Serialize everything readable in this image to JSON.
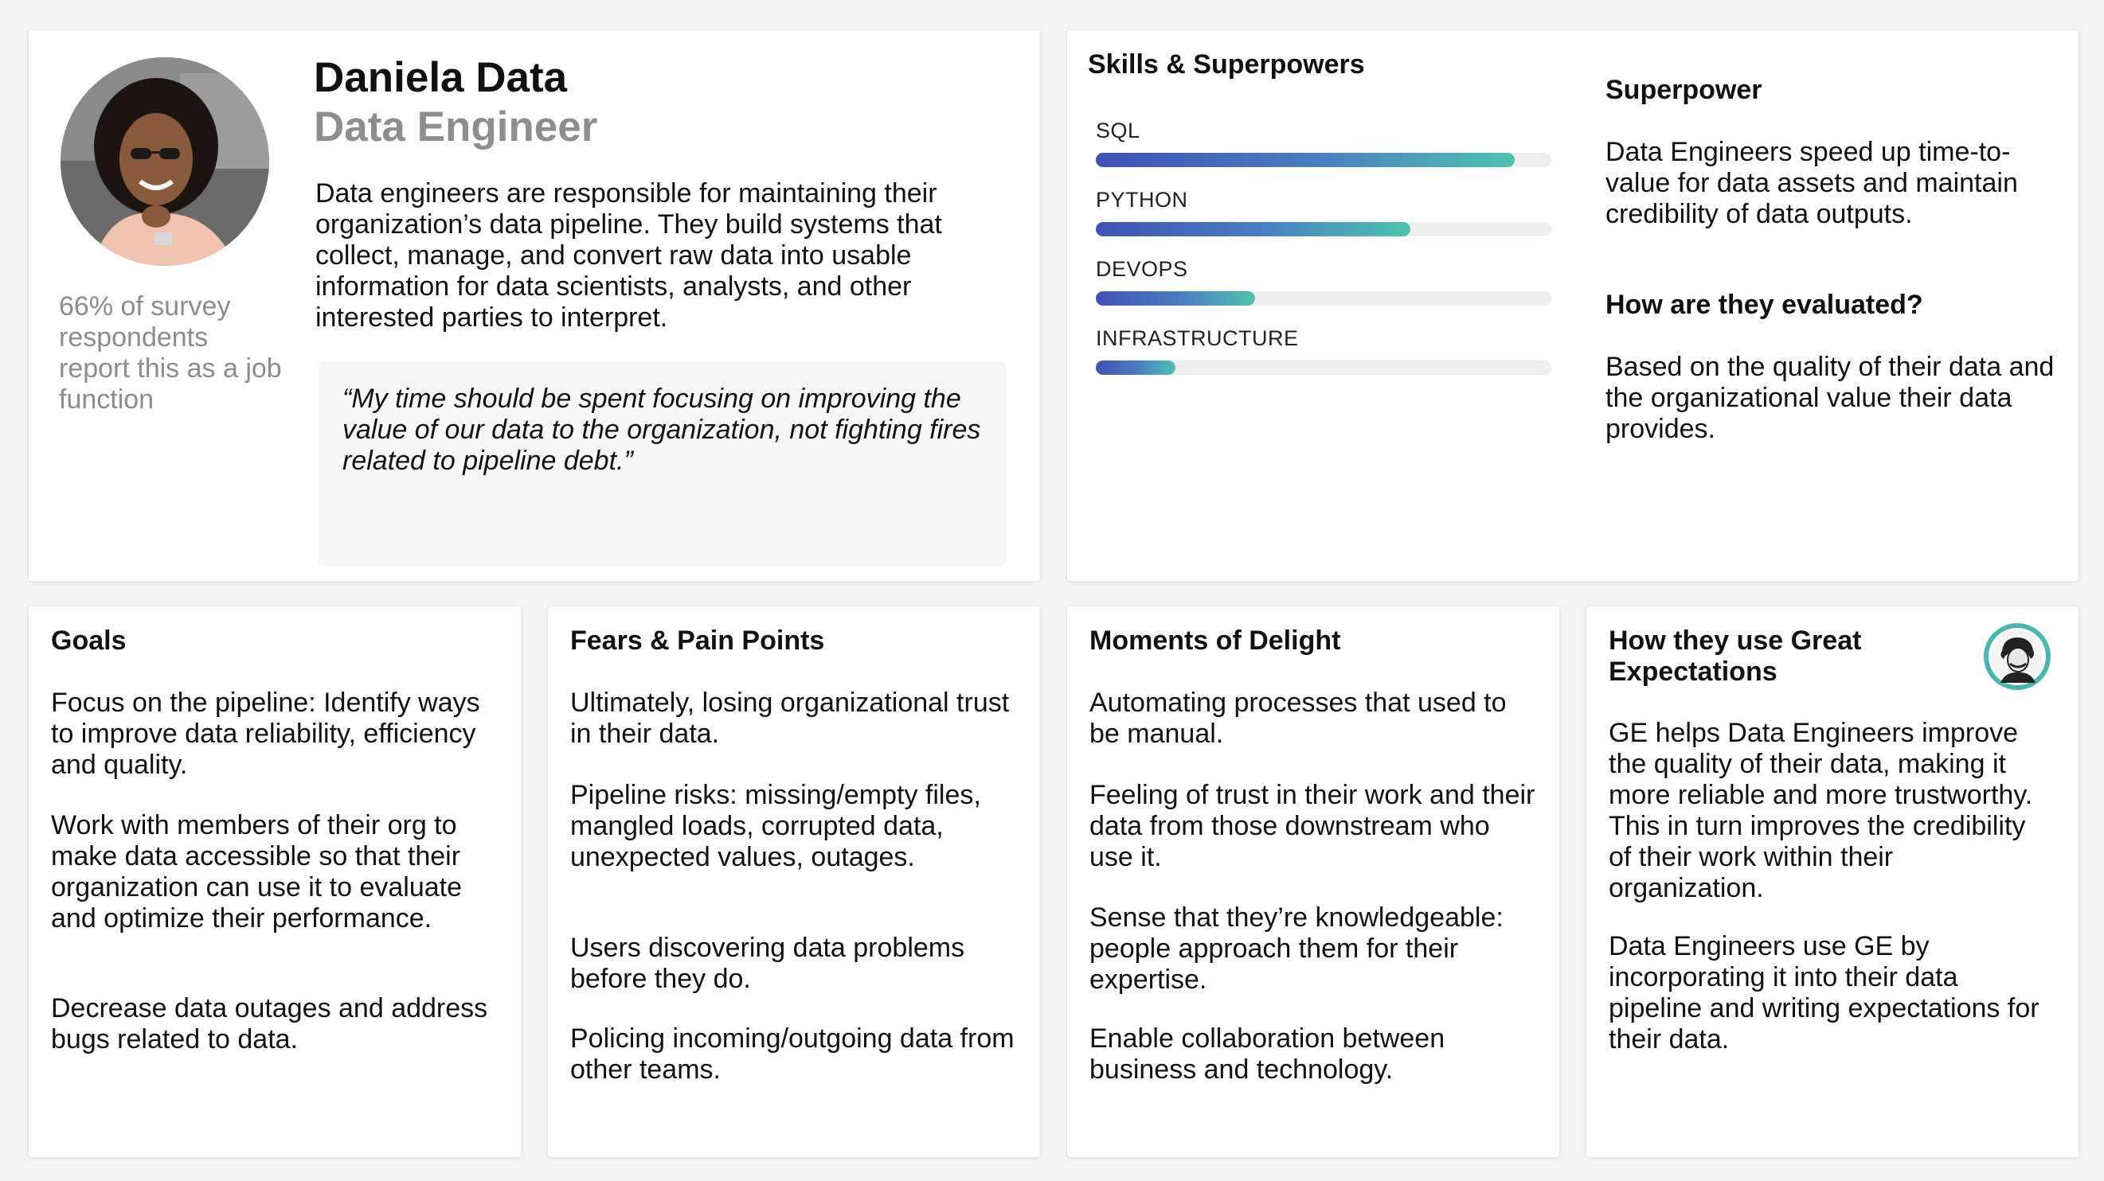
{
  "profile": {
    "name": "Daniela Data",
    "role": "Data Engineer",
    "stat": "66% of survey respondents report this as a job function",
    "description": "Data engineers are responsible for maintaining their organization’s data pipeline. They build systems that collect, manage, and convert raw data into usable information for data scientists, analysts, and other interested parties  to interpret.",
    "quote": "“My time should be spent focusing on improving the value of our data to the organization, not fighting fires related to pipeline debt.”"
  },
  "skills": {
    "title": "Skills & Superpowers",
    "items": [
      {
        "label": "SQL",
        "level": 0.92
      },
      {
        "label": "PYTHON",
        "level": 0.69
      },
      {
        "label": "DEVOPS",
        "level": 0.35
      },
      {
        "label": "INFRASTRUCTURE",
        "level": 0.175
      }
    ],
    "superpower_title": "Superpower",
    "superpower_text": "Data Engineers speed up time-to-value for data assets and maintain credibility of data outputs.",
    "evaluated_title": "How are they evaluated?",
    "evaluated_text": "Based on the quality of their data and the organizational value their data provides."
  },
  "goals": {
    "title": "Goals",
    "paragraphs": [
      "Focus on the pipeline: Identify ways to improve data reliability, efficiency and quality.",
      "Work with members of their org to make data accessible so that their organization can use it to evaluate and optimize their performance.",
      "Decrease data outages and address bugs related to data."
    ]
  },
  "fears": {
    "title": "Fears & Pain Points",
    "paragraphs": [
      "Ultimately, losing organizational trust in their data.",
      "Pipeline risks: missing/empty files, mangled loads, corrupted data, unexpected values, outages.",
      "Users discovering data problems before they do.",
      "Policing incoming/outgoing data from other teams."
    ]
  },
  "delight": {
    "title": "Moments of Delight",
    "paragraphs": [
      "Automating processes that used to be manual.",
      "Feeling of trust in their work and their data from those downstream who use it.",
      "Sense that they’re knowledgeable: people approach them for their expertise.",
      "Enable collaboration between business and technology."
    ]
  },
  "ge": {
    "title": "How they use Great Expectations",
    "paragraphs": [
      "GE helps Data Engineers improve the quality of their data, making it more reliable and more trustworthy. This in turn improves the credibility of their work within their organization.",
      "Data Engineers use GE by incorporating it into their data pipeline and writing expectations for their data."
    ],
    "logo_icon": "great-expectations-logo-icon",
    "accent": "#4bb5b0"
  },
  "colors": {
    "bar_start": "#3f51b5",
    "bar_end": "#4ec3b0",
    "muted_text": "#8e8e8e"
  }
}
